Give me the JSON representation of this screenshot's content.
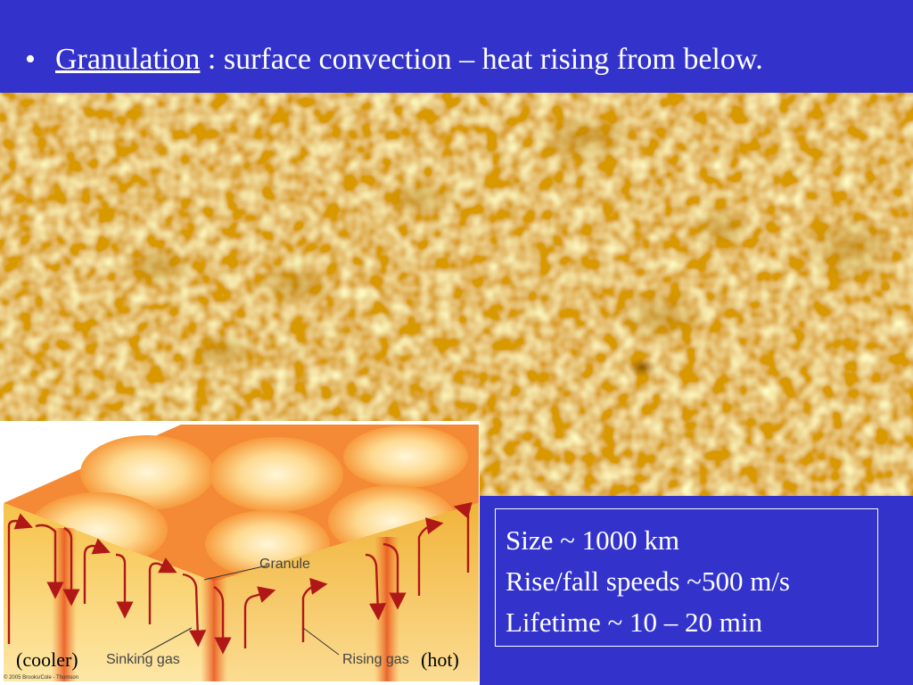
{
  "slide": {
    "bullet": "•",
    "title_term": "Granulation",
    "title_rest": " : surface convection – heat rising from below."
  },
  "info_box": {
    "lines": [
      "Size ~ 1000 km",
      "Rise/fall speeds ~500 m/s",
      "Lifetime ~ 10 – 20 min"
    ]
  },
  "diagram": {
    "label_granule": "Granule",
    "label_sinking": "Sinking gas",
    "label_rising": "Rising gas",
    "label_cooler": "(cooler)",
    "label_hot": "(hot)",
    "credit": "© 2005 Brooks/Cole - Thomson"
  },
  "colors": {
    "background": "#3333cc",
    "text": "#ffffff",
    "arrow": "#b01818",
    "granule_base": "#f2b800"
  }
}
